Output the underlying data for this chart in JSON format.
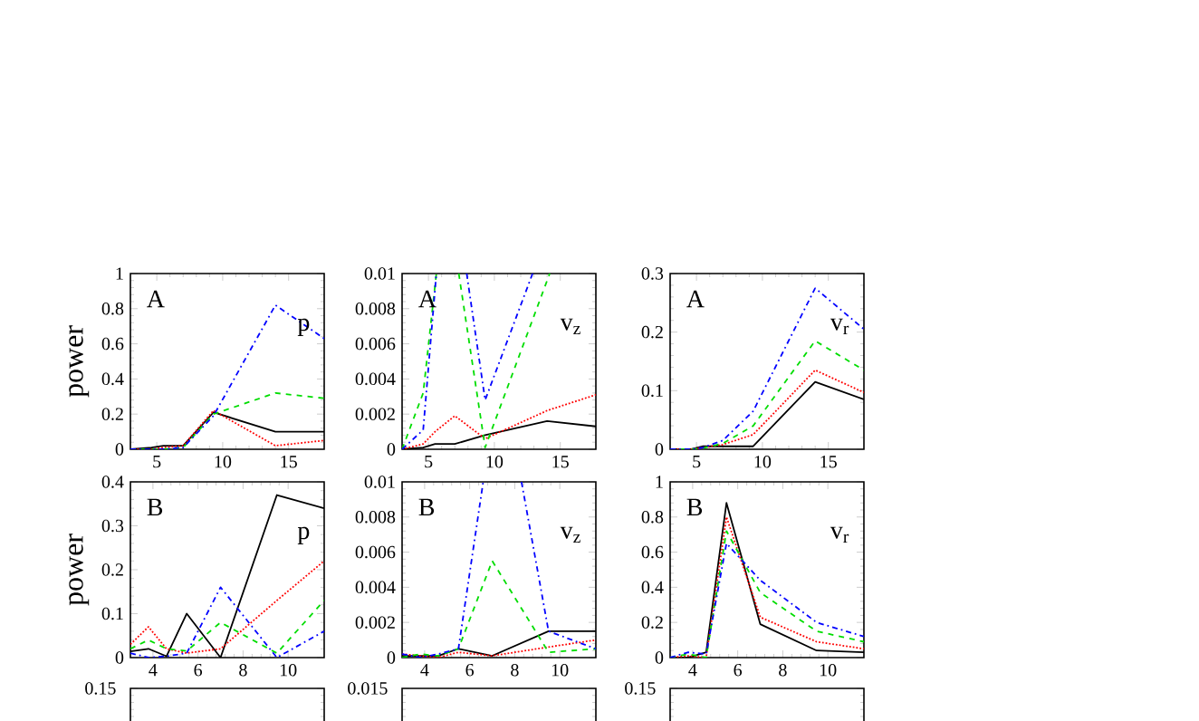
{
  "chart_data": [
    {
      "type": "line",
      "ylabel": "power",
      "annotations": [
        "A",
        "p"
      ],
      "xlim": [
        3,
        17.7
      ],
      "ylim": [
        0,
        1
      ],
      "xticks": [
        5,
        10,
        15
      ],
      "yticks": [
        0,
        0.2,
        0.4,
        0.6,
        0.8,
        1
      ],
      "x": [
        3,
        4.6,
        5.5,
        7,
        9.3,
        14,
        17.7
      ],
      "series": [
        {
          "color": "#000000",
          "line_style": "solid",
          "values": [
            0,
            0.01,
            0.02,
            0.02,
            0.21,
            0.1,
            0.1
          ]
        },
        {
          "color": "#ff0000",
          "line_style": "dotted",
          "values": [
            0,
            0,
            0.01,
            0.02,
            0.22,
            0.02,
            0.05
          ]
        },
        {
          "color": "#00dd00",
          "line_style": "dashed",
          "values": [
            0,
            0,
            0,
            0.01,
            0.2,
            0.32,
            0.29
          ]
        },
        {
          "color": "#0000ff",
          "line_style": "dashdot",
          "values": [
            0,
            0,
            0,
            0.01,
            0.19,
            0.82,
            0.63
          ]
        }
      ]
    },
    {
      "type": "line",
      "annotations": [
        "A",
        "v$_{z}$"
      ],
      "xlim": [
        3,
        17.7
      ],
      "ylim": [
        0,
        0.01
      ],
      "xticks": [
        5,
        10,
        15
      ],
      "yticks": [
        0,
        0.002,
        0.004,
        0.006,
        0.008,
        0.01
      ],
      "x": [
        3,
        4.6,
        5.5,
        7,
        9.3,
        14,
        17.7
      ],
      "series": [
        {
          "color": "#000000",
          "line_style": "solid",
          "values": [
            0,
            0.0001,
            0.0003,
            0.0003,
            0.0008,
            0.0016,
            0.0013
          ]
        },
        {
          "color": "#ff0000",
          "line_style": "dotted",
          "values": [
            0,
            0.0003,
            0.001,
            0.0019,
            0.0006,
            0.0022,
            0.0031
          ]
        },
        {
          "color": "#00dd00",
          "line_style": "dashed",
          "x": [
            3,
            4.6,
            5.6,
            null,
            7.3,
            9.3,
            14.2
          ],
          "values": [
            0,
            0.0032,
            0.01,
            null,
            0.01,
            0.0001,
            0.01
          ]
        },
        {
          "color": "#0000ff",
          "line_style": "dashdot",
          "x": [
            3,
            4.6,
            5.6,
            null,
            7.9,
            9.3,
            12.9
          ],
          "values": [
            0,
            0.0011,
            0.01,
            null,
            0.01,
            0.0028,
            0.01
          ]
        }
      ]
    },
    {
      "type": "line",
      "annotations": [
        "A",
        "v$_{r}$"
      ],
      "xlim": [
        3,
        17.7
      ],
      "ylim": [
        0,
        0.3
      ],
      "xticks": [
        5,
        10,
        15
      ],
      "yticks": [
        0,
        0.1,
        0.2,
        0.3
      ],
      "x": [
        3,
        4.6,
        5.5,
        7,
        9.3,
        14,
        17.7
      ],
      "series": [
        {
          "color": "#000000",
          "line_style": "solid",
          "values": [
            0,
            0,
            0.005,
            0.005,
            0.005,
            0.115,
            0.085
          ]
        },
        {
          "color": "#ff0000",
          "line_style": "dotted",
          "values": [
            0,
            0,
            0.003,
            0.008,
            0.025,
            0.135,
            0.097
          ]
        },
        {
          "color": "#00dd00",
          "line_style": "dashed",
          "values": [
            0,
            0,
            0.002,
            0.01,
            0.04,
            0.185,
            0.135
          ]
        },
        {
          "color": "#0000ff",
          "line_style": "dashdot",
          "values": [
            0,
            0,
            0.003,
            0.015,
            0.065,
            0.275,
            0.205
          ]
        }
      ]
    },
    {
      "type": "line",
      "ylabel": "power",
      "annotations": [
        "B",
        "p"
      ],
      "xlim": [
        3,
        11.6
      ],
      "ylim": [
        0,
        0.4
      ],
      "xticks": [
        4,
        6,
        8,
        10
      ],
      "yticks": [
        0,
        0.1,
        0.2,
        0.3,
        0.4
      ],
      "x": [
        3,
        3.8,
        4.6,
        5.5,
        7,
        9.5,
        11.6
      ],
      "series": [
        {
          "color": "#000000",
          "line_style": "solid",
          "values": [
            0.014,
            0.02,
            0.003,
            0.1,
            0,
            0.37,
            0.34
          ]
        },
        {
          "color": "#ff0000",
          "line_style": "dotted",
          "values": [
            0.03,
            0.07,
            0.02,
            0.01,
            0.02,
            0.13,
            0.22
          ]
        },
        {
          "color": "#00dd00",
          "line_style": "dashed",
          "values": [
            0.02,
            0.04,
            0.02,
            0.015,
            0.08,
            0.01,
            0.13
          ]
        },
        {
          "color": "#0000ff",
          "line_style": "dashdot",
          "values": [
            0.01,
            0,
            0.003,
            0.01,
            0.16,
            0,
            0.06
          ]
        }
      ]
    },
    {
      "type": "line",
      "annotations": [
        "B",
        "v$_{z}$"
      ],
      "xlim": [
        3,
        11.6
      ],
      "ylim": [
        0,
        0.01
      ],
      "xticks": [
        4,
        6,
        8,
        10
      ],
      "yticks": [
        0,
        0.002,
        0.004,
        0.006,
        0.008,
        0.01
      ],
      "x": [
        3,
        3.8,
        4.6,
        5.5,
        7,
        9.5,
        11.6
      ],
      "series": [
        {
          "color": "#000000",
          "line_style": "solid",
          "values": [
            0.0001,
            0.0001,
            0.0001,
            0.0005,
            0.0001,
            0.0015,
            0.0015
          ]
        },
        {
          "color": "#ff0000",
          "line_style": "dotted",
          "values": [
            0.0002,
            0.0001,
            0,
            0.0003,
            0.0001,
            0.0006,
            0.001
          ]
        },
        {
          "color": "#00dd00",
          "line_style": "dashed",
          "values": [
            0,
            0.0002,
            0.0001,
            0.0005,
            0.0055,
            0.0003,
            0.0005
          ]
        },
        {
          "color": "#0000ff",
          "line_style": "dashdot",
          "x": [
            3,
            3.8,
            4.6,
            5.5,
            6.6,
            null,
            8.3,
            9.5,
            11.6
          ],
          "values": [
            0.0002,
            0,
            0.0002,
            0.0005,
            0.01,
            null,
            0.01,
            0.0015,
            0.0005
          ]
        }
      ]
    },
    {
      "type": "line",
      "annotations": [
        "B",
        "v$_{r}$"
      ],
      "xlim": [
        3,
        11.6
      ],
      "ylim": [
        0,
        1
      ],
      "xticks": [
        4,
        6,
        8,
        10
      ],
      "yticks": [
        0,
        0.2,
        0.4,
        0.6,
        0.8,
        1
      ],
      "x": [
        3,
        3.8,
        4.6,
        5.5,
        7,
        9.5,
        11.6
      ],
      "series": [
        {
          "color": "#000000",
          "line_style": "solid",
          "values": [
            0,
            0,
            0.03,
            0.88,
            0.19,
            0.04,
            0.03
          ]
        },
        {
          "color": "#ff0000",
          "line_style": "dotted",
          "values": [
            0,
            0.01,
            0,
            0.8,
            0.23,
            0.09,
            0.05
          ]
        },
        {
          "color": "#00dd00",
          "line_style": "dashed",
          "values": [
            0,
            0.02,
            0,
            0.72,
            0.37,
            0.15,
            0.09
          ]
        },
        {
          "color": "#0000ff",
          "line_style": "dashdot",
          "values": [
            0,
            0.03,
            0.02,
            0.65,
            0.44,
            0.2,
            0.12
          ]
        }
      ]
    },
    {
      "type": "other",
      "annotations": [
        "0.15"
      ]
    },
    {
      "type": "other",
      "annotations": [
        "0.015"
      ]
    },
    {
      "type": "other",
      "annotations": [
        "0.15"
      ]
    }
  ]
}
